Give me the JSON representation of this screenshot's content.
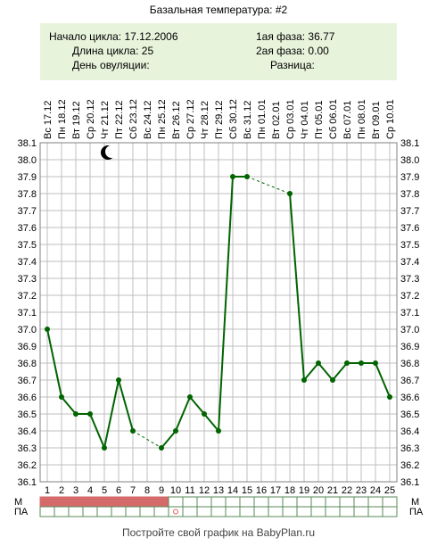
{
  "title": "Базальная температура: #2",
  "info": {
    "cycle_start": "Начало цикла: 17.12.2006",
    "cycle_length": "Длина цикла: 25",
    "ovulation_day": "День овуляции:",
    "phase1": "1ая фаза: 36.77",
    "phase2": "2ая фаза: 0.00",
    "difference": "Разница:"
  },
  "footer": "Постройте свой график на BabyPlan.ru",
  "row_labels": {
    "m": "М",
    "pa": "ПА"
  },
  "colors": {
    "line": "#006400",
    "grid": "#bfbfbf",
    "m_fill": "#d46a6a",
    "pa_marker": "#e06060",
    "info_bg": "#e8f3dc"
  },
  "icons": {
    "moon": "crescent-moon-icon",
    "pa_marker": "circle-marker-icon"
  },
  "chart_data": {
    "type": "line",
    "x": [
      1,
      2,
      3,
      4,
      5,
      6,
      7,
      8,
      9,
      10,
      11,
      12,
      13,
      14,
      15,
      16,
      17,
      18,
      19,
      20,
      21,
      22,
      23,
      24,
      25
    ],
    "dates": [
      "Вс 17.12",
      "Пн 18.12",
      "Вт 19.12",
      "Ср 20.12",
      "Чт 21.12",
      "Пт 22.12",
      "Сб 23.12",
      "Вс 24.12",
      "Пн 25.12",
      "Вт 26.12",
      "Ср 27.12",
      "Чт 28.12",
      "Пт 29.12",
      "Сб 30.12",
      "Вс 31.12",
      "Пн 01.01",
      "Вт 02.01",
      "Ср 03.01",
      "Чт 04.01",
      "Пт 05.01",
      "Сб 06.01",
      "Вс 07.01",
      "Пн 08.01",
      "Вт 09.01",
      "Ср 10.01"
    ],
    "values": [
      37.0,
      36.6,
      36.5,
      36.5,
      36.3,
      36.7,
      36.4,
      null,
      36.3,
      36.4,
      36.6,
      36.5,
      36.4,
      37.9,
      37.9,
      null,
      null,
      37.8,
      36.7,
      36.8,
      36.7,
      36.8,
      36.8,
      36.8,
      36.6
    ],
    "ylim": [
      36.1,
      38.1
    ],
    "yticks": [
      "36.1",
      "36.2",
      "36.3",
      "36.4",
      "36.5",
      "36.6",
      "36.7",
      "36.8",
      "36.9",
      "37.0",
      "37.1",
      "37.2",
      "37.3",
      "37.4",
      "37.5",
      "37.6",
      "37.7",
      "37.8",
      "37.9",
      "38.0",
      "38.1"
    ],
    "moon_day": 5,
    "m_days": [
      1,
      2,
      3,
      4,
      5,
      6,
      7,
      8,
      9
    ],
    "pa_days": [
      10
    ],
    "grid": true
  }
}
